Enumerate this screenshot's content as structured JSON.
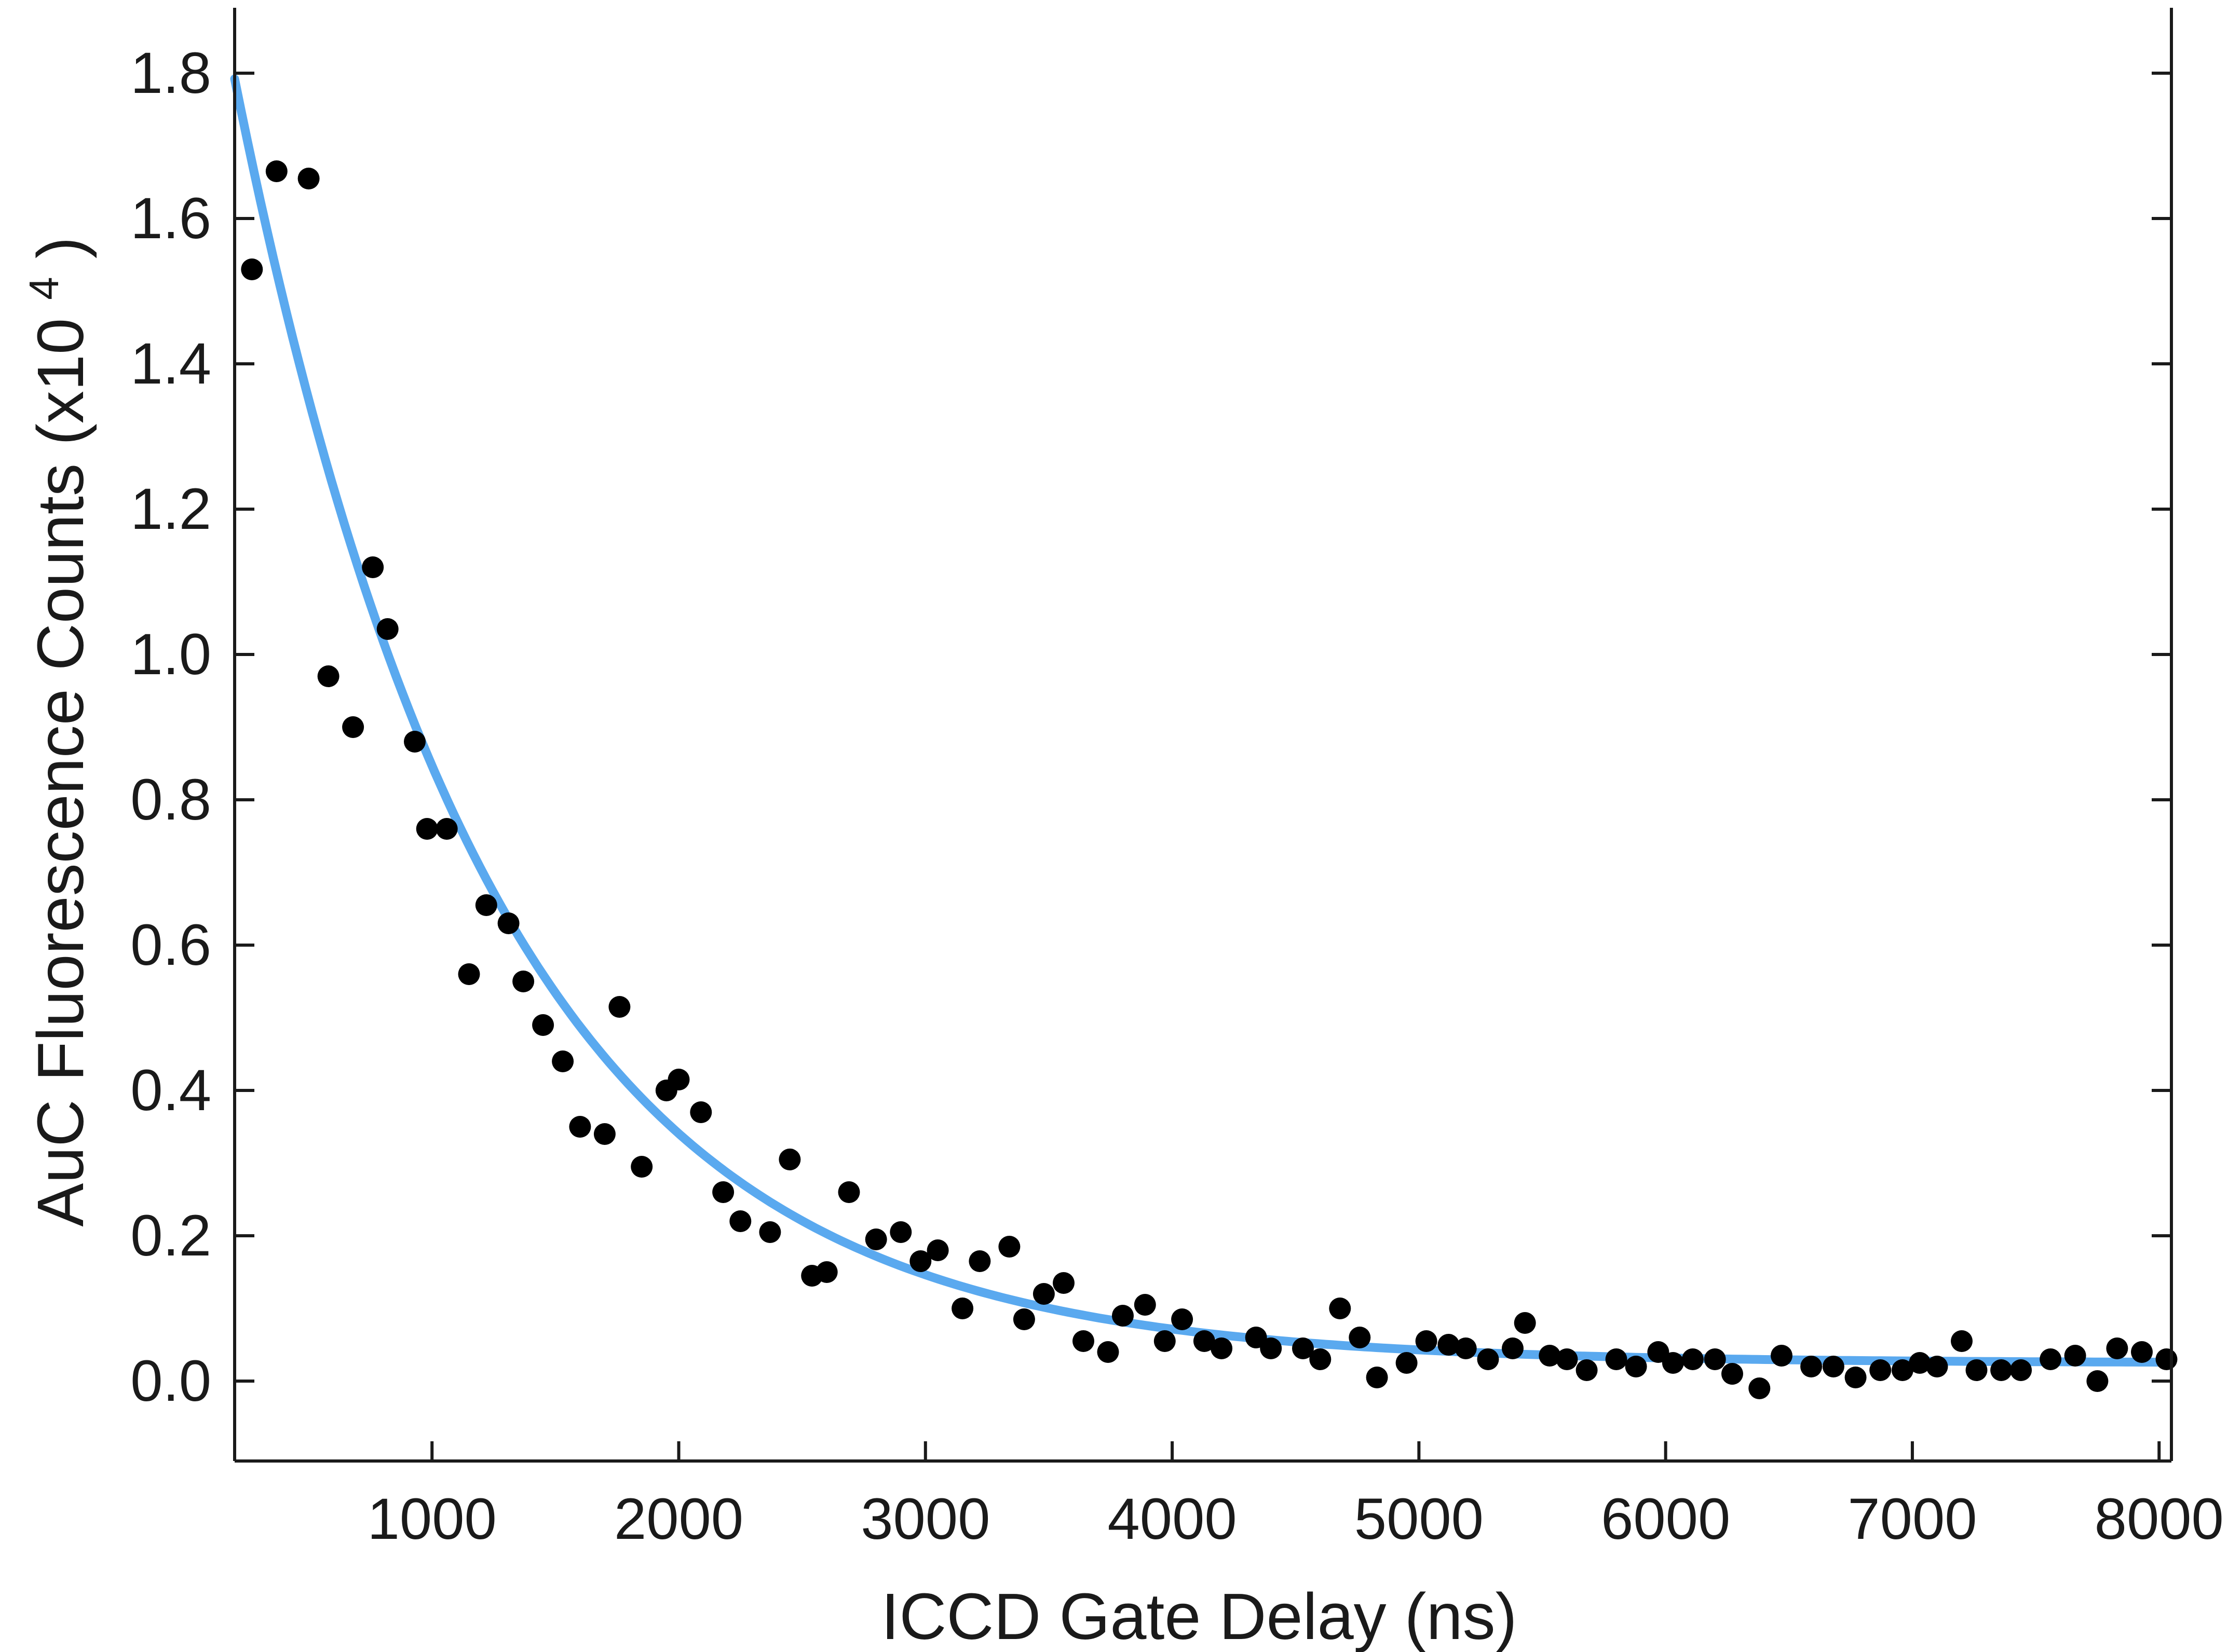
{
  "chart_data": {
    "type": "scatter",
    "title": "",
    "xlabel": "ICCD Gate Delay (ns)",
    "ylabel": {
      "prefix": "AuC Fluorescence Counts (x10",
      "exponent": "4",
      "suffix": ")"
    },
    "xlim": [
      200,
      8050
    ],
    "ylim": [
      -0.11,
      1.89
    ],
    "x_ticks": [
      1000,
      2000,
      3000,
      4000,
      5000,
      6000,
      7000,
      8000
    ],
    "x_tick_labels": [
      "1000",
      "2000",
      "3000",
      "4000",
      "5000",
      "6000",
      "7000",
      "8000"
    ],
    "y_ticks": [
      0.0,
      0.2,
      0.4,
      0.6,
      0.8,
      1.0,
      1.2,
      1.4,
      1.6,
      1.8
    ],
    "y_tick_labels": [
      "0.0",
      "0.2",
      "0.4",
      "0.6",
      "0.8",
      "1.0",
      "1.2",
      "1.4",
      "1.6",
      "1.8"
    ],
    "grid": false,
    "colors": {
      "points": "#000000",
      "fit": "#5aa9ef",
      "axis": "#1a1a1a"
    },
    "series": [
      {
        "name": "measured",
        "kind": "scatter",
        "points": [
          [
            270,
            1.53
          ],
          [
            370,
            1.665
          ],
          [
            500,
            1.655
          ],
          [
            580,
            0.97
          ],
          [
            680,
            0.9
          ],
          [
            760,
            1.12
          ],
          [
            820,
            1.035
          ],
          [
            930,
            0.88
          ],
          [
            980,
            0.76
          ],
          [
            1060,
            0.76
          ],
          [
            1150,
            0.56
          ],
          [
            1220,
            0.655
          ],
          [
            1310,
            0.63
          ],
          [
            1370,
            0.55
          ],
          [
            1450,
            0.49
          ],
          [
            1530,
            0.44
          ],
          [
            1600,
            0.35
          ],
          [
            1700,
            0.34
          ],
          [
            1760,
            0.515
          ],
          [
            1850,
            0.295
          ],
          [
            1950,
            0.4
          ],
          [
            2000,
            0.415
          ],
          [
            2090,
            0.37
          ],
          [
            2180,
            0.26
          ],
          [
            2250,
            0.22
          ],
          [
            2370,
            0.205
          ],
          [
            2450,
            0.305
          ],
          [
            2540,
            0.145
          ],
          [
            2600,
            0.15
          ],
          [
            2690,
            0.26
          ],
          [
            2800,
            0.195
          ],
          [
            2900,
            0.205
          ],
          [
            2980,
            0.165
          ],
          [
            3050,
            0.18
          ],
          [
            3150,
            0.1
          ],
          [
            3220,
            0.165
          ],
          [
            3340,
            0.185
          ],
          [
            3400,
            0.085
          ],
          [
            3480,
            0.12
          ],
          [
            3560,
            0.135
          ],
          [
            3640,
            0.055
          ],
          [
            3740,
            0.04
          ],
          [
            3800,
            0.09
          ],
          [
            3890,
            0.105
          ],
          [
            3970,
            0.055
          ],
          [
            4040,
            0.085
          ],
          [
            4130,
            0.055
          ],
          [
            4200,
            0.045
          ],
          [
            4340,
            0.06
          ],
          [
            4400,
            0.045
          ],
          [
            4530,
            0.045
          ],
          [
            4600,
            0.03
          ],
          [
            4680,
            0.1
          ],
          [
            4760,
            0.06
          ],
          [
            4830,
            0.005
          ],
          [
            4950,
            0.025
          ],
          [
            5030,
            0.055
          ],
          [
            5120,
            0.05
          ],
          [
            5190,
            0.045
          ],
          [
            5280,
            0.03
          ],
          [
            5380,
            0.045
          ],
          [
            5430,
            0.08
          ],
          [
            5530,
            0.035
          ],
          [
            5600,
            0.03
          ],
          [
            5680,
            0.015
          ],
          [
            5800,
            0.03
          ],
          [
            5880,
            0.02
          ],
          [
            5970,
            0.04
          ],
          [
            6030,
            0.025
          ],
          [
            6110,
            0.03
          ],
          [
            6200,
            0.03
          ],
          [
            6270,
            0.01
          ],
          [
            6380,
            -0.01
          ],
          [
            6470,
            0.035
          ],
          [
            6590,
            0.02
          ],
          [
            6680,
            0.02
          ],
          [
            6770,
            0.005
          ],
          [
            6870,
            0.015
          ],
          [
            6960,
            0.015
          ],
          [
            7030,
            0.025
          ],
          [
            7100,
            0.02
          ],
          [
            7200,
            0.055
          ],
          [
            7260,
            0.015
          ],
          [
            7360,
            0.015
          ],
          [
            7440,
            0.015
          ],
          [
            7560,
            0.03
          ],
          [
            7660,
            0.035
          ],
          [
            7750,
            0.0
          ],
          [
            7830,
            0.045
          ],
          [
            7930,
            0.04
          ],
          [
            8030,
            0.03
          ]
        ]
      },
      {
        "name": "exponential fit",
        "kind": "line",
        "model": "y = A*exp(-x/tau) + c",
        "params": {
          "A": 2.14,
          "tau": 1045,
          "c": 0.025
        },
        "x_range": [
          200,
          8050
        ]
      }
    ]
  }
}
